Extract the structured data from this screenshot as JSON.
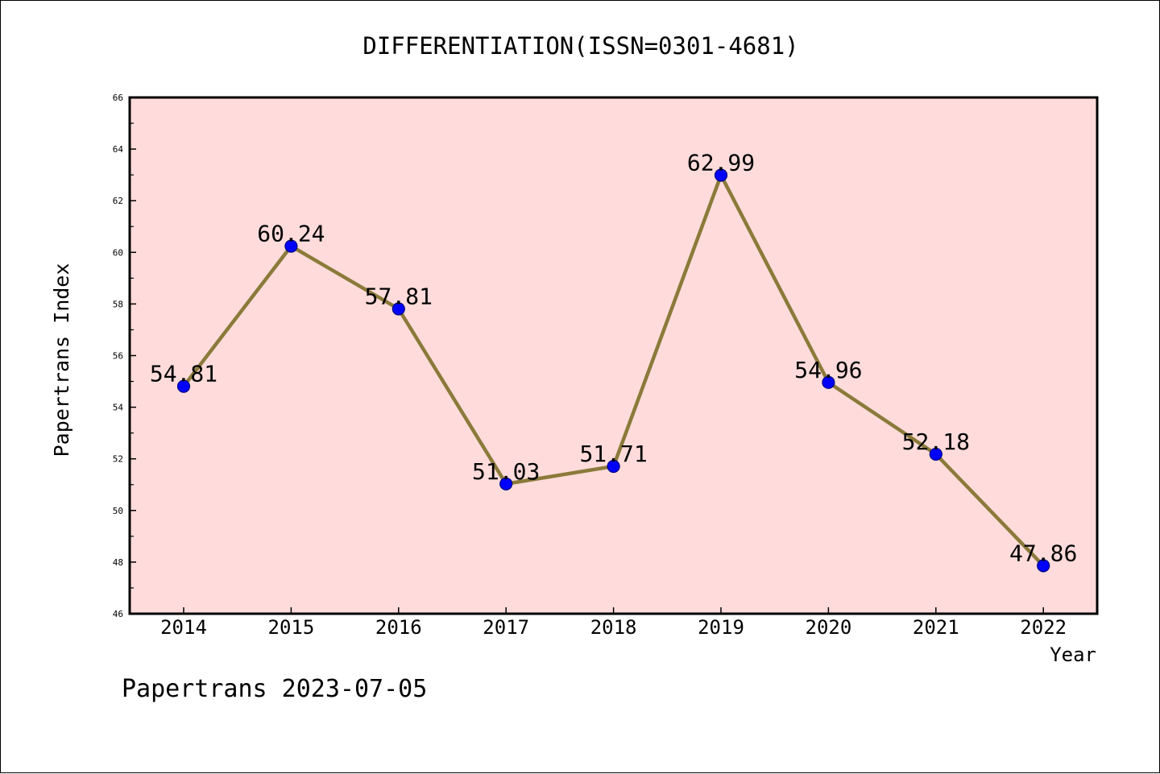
{
  "chart_data": {
    "type": "line",
    "title": "DIFFERENTIATION(ISSN=0301-4681)",
    "xlabel": "Year",
    "ylabel": "Papertrans Index",
    "categories": [
      "2014",
      "2015",
      "2016",
      "2017",
      "2018",
      "2019",
      "2020",
      "2021",
      "2022"
    ],
    "series": [
      {
        "values": [
          54.81,
          60.24,
          57.81,
          51.03,
          51.71,
          62.99,
          54.96,
          52.18,
          47.86
        ],
        "labels": [
          "54.81",
          "60.24",
          "57.81",
          "51.03",
          "51.71",
          "62.99",
          "54.96",
          "52.18",
          "47.86"
        ]
      }
    ],
    "ylim": [
      46,
      66
    ],
    "yticks": [
      "46",
      "48",
      "50",
      "52",
      "54",
      "56",
      "58",
      "60",
      "62",
      "64",
      "66"
    ],
    "grid": false,
    "legend": "none"
  },
  "footer": {
    "watermark": "Papertrans 2023-07-05"
  },
  "colors": {
    "plot_background": "#FFDCDB",
    "line": "#8B7A3A",
    "marker_fill": "#0000FF",
    "marker_edge": "#000080",
    "text": "#000000"
  }
}
